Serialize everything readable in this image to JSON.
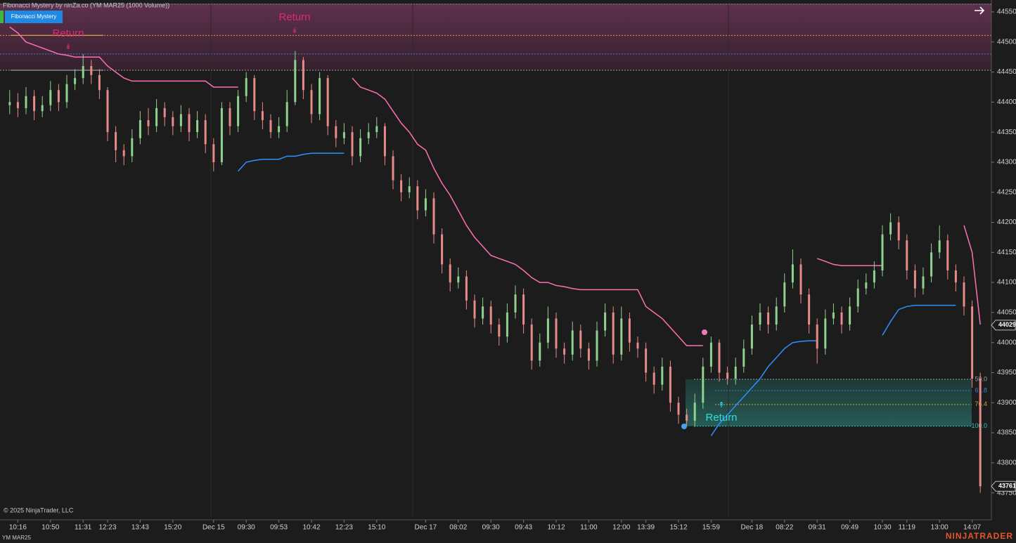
{
  "chart_data": {
    "type": "candlestick",
    "title": "Fibonacci Mystery by ninZa.co (YM MAR25 (1000 Volume))",
    "button": "Fibonacci Mystery",
    "copyright": "© 2025 NinjaTrader, LLC",
    "instrument": "YM MAR25",
    "brand": "NINJATRADER",
    "up_color": "#8fd18f",
    "down_color": "#e88a8a",
    "ylim": [
      43711,
      44564
    ],
    "yticks": [
      43750,
      43800,
      43850,
      43900,
      43950,
      44000,
      44050,
      44100,
      44150,
      44200,
      44250,
      44300,
      44350,
      44400,
      44450,
      44500,
      44550
    ],
    "price_markers": [
      44029,
      43761
    ],
    "categories": [
      null,
      "10:16",
      null,
      null,
      null,
      "10:50",
      null,
      null,
      null,
      "11:31",
      null,
      null,
      "12:23",
      null,
      null,
      null,
      "13:43",
      null,
      null,
      null,
      "15:20",
      null,
      null,
      null,
      null,
      "Dec 15",
      null,
      null,
      null,
      "09:30",
      null,
      null,
      null,
      "09:53",
      null,
      null,
      null,
      "10:42",
      null,
      null,
      null,
      "12:23",
      null,
      null,
      null,
      "15:10",
      null,
      null,
      null,
      null,
      null,
      "Dec 17",
      null,
      null,
      null,
      "08:02",
      null,
      null,
      null,
      "09:30",
      null,
      null,
      null,
      "09:43",
      null,
      null,
      null,
      "10:12",
      null,
      null,
      null,
      "11:00",
      null,
      null,
      null,
      "12:00",
      null,
      null,
      "13:39",
      null,
      null,
      null,
      "15:12",
      null,
      null,
      null,
      "15:59",
      null,
      null,
      null,
      null,
      "Dec 18",
      null,
      null,
      null,
      "08:22",
      null,
      null,
      null,
      "09:31",
      null,
      null,
      null,
      "09:49",
      null,
      null,
      null,
      "10:30",
      null,
      null,
      "11:19",
      null,
      null,
      null,
      "13:00",
      null,
      null,
      null,
      "14:07",
      null
    ],
    "open": [
      44395,
      44400,
      44390,
      44410,
      44385,
      44395,
      44420,
      44400,
      44430,
      44440,
      44460,
      44445,
      44420,
      44350,
      44320,
      44310,
      44340,
      44370,
      44360,
      44390,
      44375,
      44360,
      44380,
      44350,
      44370,
      44330,
      44300,
      44390,
      44360,
      44410,
      44440,
      44385,
      44370,
      44350,
      44360,
      44400,
      44470,
      44420,
      44380,
      44440,
      44360,
      44340,
      44350,
      44310,
      44340,
      44350,
      44360,
      44310,
      44270,
      44250,
      44260,
      44220,
      44240,
      44180,
      44130,
      44100,
      44110,
      44070,
      44040,
      44060,
      44030,
      44010,
      44050,
      44080,
      44030,
      43970,
      44000,
      44040,
      43990,
      43980,
      44020,
      43990,
      43970,
      44020,
      44050,
      43980,
      44040,
      44000,
      43990,
      43950,
      43930,
      43960,
      43900,
      43880,
      43870,
      43900,
      43960,
      44000,
      43950,
      43940,
      43960,
      43990,
      44030,
      44050,
      44030,
      44060,
      44100,
      44130,
      44080,
      44030,
      43990,
      44040,
      44050,
      44030,
      44060,
      44090,
      44100,
      44120,
      44180,
      44200,
      44170,
      44120,
      44090,
      44110,
      44150,
      44170,
      44120,
      44100,
      44060,
      43940
    ],
    "high": [
      44420,
      44415,
      44425,
      44420,
      44410,
      44435,
      44430,
      44445,
      44455,
      44480,
      44470,
      44455,
      44425,
      44360,
      44330,
      44355,
      44385,
      44390,
      44405,
      44400,
      44385,
      44395,
      44390,
      44385,
      44380,
      44340,
      44400,
      44400,
      44420,
      44450,
      44445,
      44400,
      44380,
      44375,
      44420,
      44485,
      44475,
      44430,
      44450,
      44445,
      44370,
      44365,
      44360,
      44355,
      44365,
      44375,
      44365,
      44320,
      44280,
      44275,
      44270,
      44255,
      44250,
      44190,
      44140,
      44125,
      44120,
      44080,
      44075,
      44070,
      44040,
      44065,
      44095,
      44090,
      44040,
      44015,
      44060,
      44050,
      44000,
      44035,
      44030,
      44000,
      44035,
      44065,
      44060,
      44060,
      44050,
      44010,
      44000,
      43960,
      43975,
      43970,
      43910,
      43890,
      43915,
      43975,
      44010,
      44005,
      43960,
      43975,
      44005,
      44045,
      44065,
      44060,
      44075,
      44115,
      44155,
      44140,
      44090,
      44040,
      44055,
      44065,
      44060,
      44075,
      44105,
      44115,
      44135,
      44195,
      44215,
      44210,
      44180,
      44130,
      44125,
      44165,
      44195,
      44180,
      44130,
      44110,
      44070,
      43950
    ],
    "low": [
      44380,
      44375,
      44380,
      44370,
      44375,
      44385,
      44385,
      44390,
      44420,
      44430,
      44430,
      44405,
      44335,
      44300,
      44295,
      44300,
      44330,
      44345,
      44350,
      44360,
      44345,
      44350,
      44335,
      44340,
      44315,
      44285,
      44295,
      44345,
      44350,
      44400,
      44370,
      44355,
      44340,
      44340,
      44350,
      44395,
      44405,
      44365,
      44370,
      44345,
      44325,
      44330,
      44295,
      44300,
      44330,
      44340,
      44295,
      44255,
      44235,
      44240,
      44205,
      44210,
      44165,
      44115,
      44085,
      44090,
      44055,
      44025,
      44030,
      44015,
      43995,
      44000,
      44040,
      44015,
      43955,
      43960,
      43990,
      43975,
      43965,
      43970,
      43975,
      43955,
      43960,
      44010,
      43965,
      43970,
      43985,
      43975,
      43935,
      43915,
      43920,
      43885,
      43865,
      43860,
      43860,
      43890,
      43950,
      43935,
      43930,
      43930,
      43950,
      43980,
      44020,
      44015,
      44020,
      44050,
      44090,
      44065,
      44015,
      43965,
      43980,
      44030,
      44015,
      44020,
      44050,
      44080,
      44090,
      44110,
      44170,
      44155,
      44105,
      44075,
      44080,
      44100,
      44140,
      44105,
      44085,
      44045,
      43925,
      43750
    ],
    "close": [
      44400,
      44390,
      44410,
      44385,
      44395,
      44420,
      44400,
      44430,
      44440,
      44460,
      44445,
      44420,
      44350,
      44320,
      44310,
      44340,
      44370,
      44360,
      44390,
      44375,
      44360,
      44380,
      44350,
      44370,
      44330,
      44300,
      44390,
      44360,
      44410,
      44440,
      44385,
      44370,
      44350,
      44360,
      44400,
      44470,
      44420,
      44380,
      44440,
      44360,
      44340,
      44350,
      44310,
      44340,
      44350,
      44360,
      44310,
      44270,
      44250,
      44260,
      44220,
      44240,
      44180,
      44130,
      44100,
      44110,
      44070,
      44040,
      44060,
      44030,
      44010,
      44050,
      44080,
      44030,
      43970,
      44000,
      44040,
      43990,
      43980,
      44020,
      43990,
      43970,
      44020,
      44050,
      43980,
      44040,
      44000,
      43990,
      43950,
      43930,
      43960,
      43900,
      43880,
      43870,
      43900,
      43960,
      44000,
      43950,
      43940,
      43960,
      43990,
      44030,
      44050,
      44030,
      44060,
      44100,
      44130,
      44080,
      44030,
      43990,
      44040,
      44050,
      44030,
      44060,
      44090,
      44100,
      44120,
      44180,
      44200,
      44170,
      44120,
      44090,
      44110,
      44150,
      44170,
      44120,
      44100,
      44060,
      43940,
      43761
    ],
    "overlays": [
      {
        "color": "#ff6fb4",
        "values": [
          44525,
          44515,
          44500,
          44495,
          44490,
          44485,
          44480,
          44478,
          44475,
          44475,
          44475,
          44475,
          44460,
          44450,
          44440,
          44435,
          44435,
          44435,
          44435,
          44435,
          44435,
          44435,
          44435,
          44435,
          44435,
          44425,
          44425,
          44425,
          44425,
          null,
          null,
          null,
          null,
          null,
          null,
          null,
          null,
          null,
          null,
          null,
          null,
          null,
          44440,
          44425,
          44420,
          44415,
          44405,
          44385,
          44365,
          44350,
          44330,
          44320,
          44290,
          44265,
          44245,
          44220,
          44195,
          44175,
          44160,
          44145,
          44140,
          44135,
          44130,
          44120,
          44108,
          44100,
          44100,
          44095,
          44093,
          44090,
          44088,
          44088,
          44088,
          44088,
          44088,
          44088,
          44088,
          44088,
          44060,
          44050,
          44040,
          44025,
          44010,
          43995,
          43995,
          43995,
          null,
          null,
          null,
          null,
          null,
          null,
          null,
          null,
          null,
          null,
          null,
          null,
          null,
          44140,
          44135,
          44130,
          44128,
          44128,
          44128,
          44128,
          44128,
          44128,
          null,
          null,
          null,
          null,
          null,
          null,
          null,
          null,
          null,
          44195,
          44150,
          44030
        ]
      },
      {
        "color": "#2f8fff",
        "values": [
          null,
          null,
          null,
          null,
          null,
          null,
          null,
          null,
          null,
          null,
          null,
          null,
          null,
          null,
          null,
          null,
          null,
          null,
          null,
          null,
          null,
          null,
          null,
          null,
          null,
          null,
          null,
          null,
          44285,
          44300,
          44303,
          44305,
          44305,
          44305,
          44310,
          44310,
          44313,
          44315,
          44315,
          44315,
          44315,
          44315,
          null,
          null,
          null,
          null,
          null,
          null,
          null,
          null,
          null,
          null,
          null,
          null,
          null,
          null,
          null,
          null,
          null,
          null,
          null,
          null,
          null,
          null,
          null,
          null,
          null,
          null,
          null,
          null,
          null,
          null,
          null,
          null,
          null,
          null,
          null,
          null,
          null,
          null,
          null,
          null,
          null,
          null,
          null,
          null,
          43845,
          43865,
          43880,
          43895,
          43910,
          43925,
          43940,
          43960,
          43975,
          43990,
          44000,
          44002,
          44003,
          44003,
          null,
          null,
          null,
          null,
          null,
          null,
          null,
          44012,
          44035,
          44055,
          44060,
          44062,
          44062,
          44062,
          44062,
          44062,
          44062,
          null,
          null,
          null
        ]
      }
    ],
    "resistance_zone": [
      44453,
      44564
    ],
    "hlines": [
      {
        "price": 44511,
        "color": "#d6a23a"
      },
      {
        "price": 44480,
        "color": "#3d7fd8"
      },
      {
        "price": 44453,
        "color": "#9a9a9a"
      }
    ],
    "fib_levels": [
      {
        "label": "50.0",
        "price": 43939,
        "color": "#9a9a9a"
      },
      {
        "label": "61.8",
        "price": 43920,
        "color": "#3d7fd8"
      },
      {
        "label": "76.4",
        "price": 43897,
        "color": "#c9a227"
      },
      {
        "label": "100.0",
        "price": 43861,
        "color": "#2ec4c4"
      }
    ],
    "annotations": [
      {
        "text": "Return",
        "color": "#e0267a"
      },
      {
        "text": "Return",
        "color": "#e0267a"
      },
      {
        "text": "Return",
        "color": "#2ee0e0"
      }
    ]
  }
}
